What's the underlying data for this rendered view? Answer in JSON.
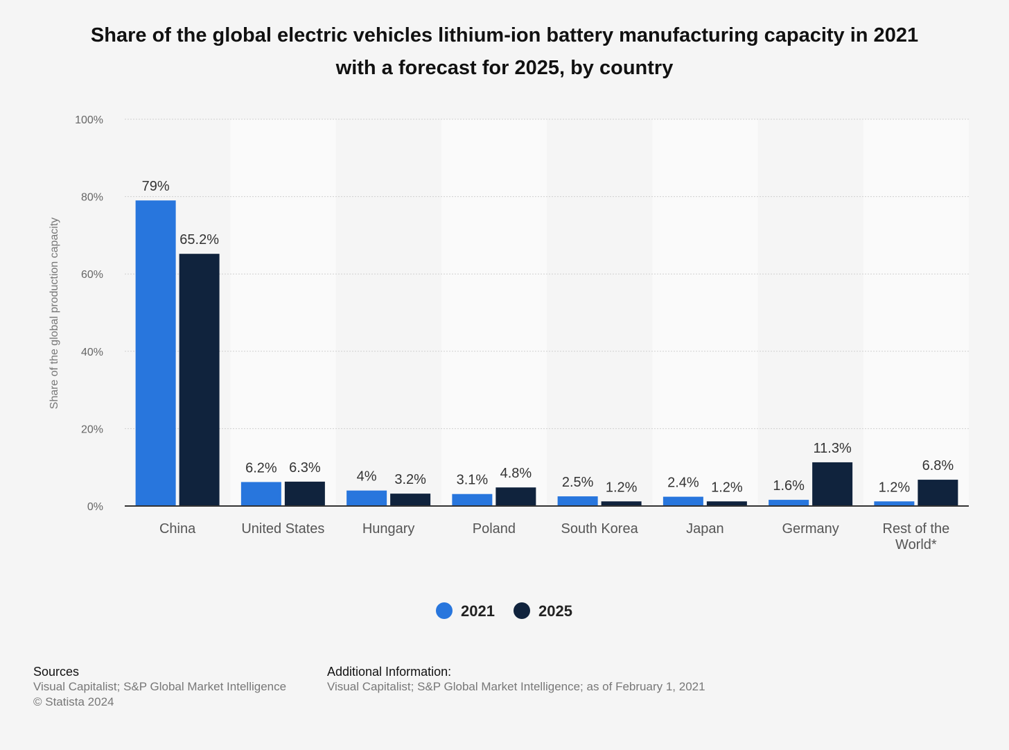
{
  "chart_data": {
    "type": "bar",
    "title": "Share of the global electric vehicles lithium-ion battery manufacturing capacity in 2021 with a forecast for 2025, by country",
    "ylabel": "Share of the global production capacity",
    "xlabel": "",
    "ylim": [
      0,
      100
    ],
    "yticks": [
      "0%",
      "20%",
      "40%",
      "60%",
      "80%",
      "100%"
    ],
    "grid": true,
    "legend_position": "bottom",
    "categories": [
      "China",
      "United States",
      "Hungary",
      "Poland",
      "South Korea",
      "Japan",
      "Germany",
      "Rest of the World*"
    ],
    "series": [
      {
        "name": "2021",
        "color": "#2876dd",
        "values": [
          79,
          6.2,
          4,
          3.1,
          2.5,
          2.4,
          1.6,
          1.2
        ],
        "labels": [
          "79%",
          "6.2%",
          "4%",
          "3.1%",
          "2.5%",
          "2.4%",
          "1.6%",
          "1.2%"
        ]
      },
      {
        "name": "2025",
        "color": "#10233d",
        "values": [
          65.2,
          6.3,
          3.2,
          4.8,
          1.2,
          1.2,
          11.3,
          6.8
        ],
        "labels": [
          "65.2%",
          "6.3%",
          "3.2%",
          "4.8%",
          "1.2%",
          "1.2%",
          "11.3%",
          "6.8%"
        ]
      }
    ]
  },
  "footer": {
    "sources_heading": "Sources",
    "sources_text": "Visual Capitalist; S&P Global Market Intelligence",
    "copyright": "© Statista 2024",
    "additional_heading": "Additional Information:",
    "additional_text": "Visual Capitalist; S&P Global Market Intelligence; as of February 1, 2021"
  }
}
